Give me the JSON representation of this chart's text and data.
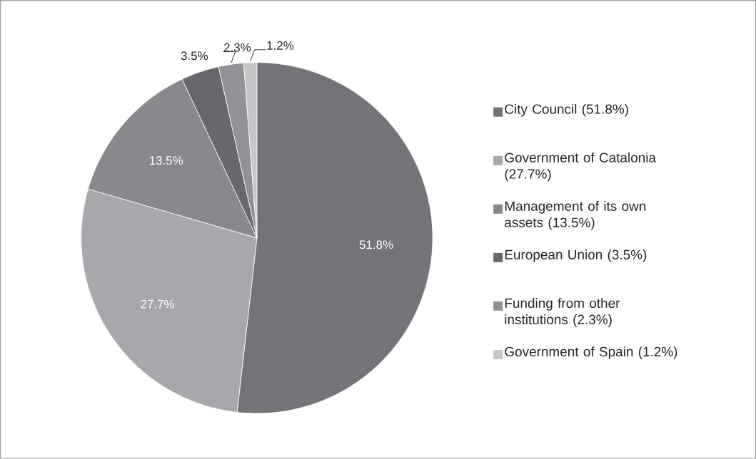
{
  "chart_data": {
    "type": "pie",
    "categories": [
      "City Council (51.8%)",
      "Government of Catalonia (27.7%)",
      "Management of its own assets (13.5%)",
      "European Union (3.5%)",
      "Funding from other institutions (2.3%)",
      "Government of Spain (1.2%)"
    ],
    "values": [
      51.8,
      27.7,
      13.5,
      3.5,
      2.3,
      1.2
    ],
    "colors": [
      "#737478",
      "#a7a8ab",
      "#88898c",
      "#67686b",
      "#919295",
      "#c6c7c9"
    ],
    "value_labels": [
      "51.8%",
      "27.7%",
      "13.5%",
      "3.5%",
      "2.3%",
      "1.2%"
    ],
    "legend": "right"
  }
}
